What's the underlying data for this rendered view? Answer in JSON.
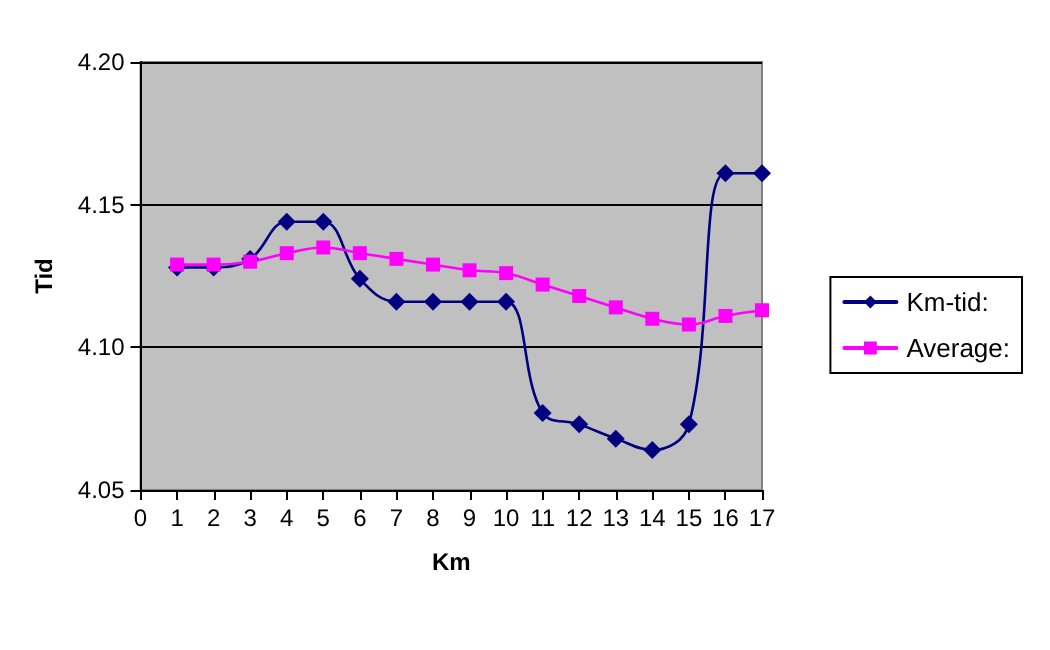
{
  "chart_data": {
    "type": "line",
    "xlabel": "Km",
    "ylabel": "Tid",
    "x": [
      1,
      2,
      3,
      4,
      5,
      6,
      7,
      8,
      9,
      10,
      11,
      12,
      13,
      14,
      15,
      16,
      17
    ],
    "series": [
      {
        "name": "Km-tid:",
        "color": "#000080",
        "marker": "diamond",
        "values": [
          4.128,
          4.128,
          4.131,
          4.144,
          4.144,
          4.124,
          4.116,
          4.116,
          4.116,
          4.116,
          4.077,
          4.073,
          4.068,
          4.064,
          4.073,
          4.161,
          4.161
        ]
      },
      {
        "name": "Average:",
        "color": "#ff00ff",
        "marker": "square",
        "values": [
          4.129,
          4.129,
          4.13,
          4.133,
          4.135,
          4.133,
          4.131,
          4.129,
          4.127,
          4.126,
          4.122,
          4.118,
          4.114,
          4.11,
          4.108,
          4.111,
          4.113
        ]
      }
    ],
    "xlim": [
      0,
      17
    ],
    "xticks": [
      0,
      1,
      2,
      3,
      4,
      5,
      6,
      7,
      8,
      9,
      10,
      11,
      12,
      13,
      14,
      15,
      16,
      17
    ],
    "ylim": [
      4.05,
      4.2
    ],
    "yticks": [
      {
        "value": 4.05,
        "label": "4.05"
      },
      {
        "value": 4.1,
        "label": "4.10"
      },
      {
        "value": 4.15,
        "label": "4.15"
      },
      {
        "value": 4.2,
        "label": "4.20"
      }
    ],
    "grid": "y",
    "legend": "right",
    "line_style": "solid"
  }
}
